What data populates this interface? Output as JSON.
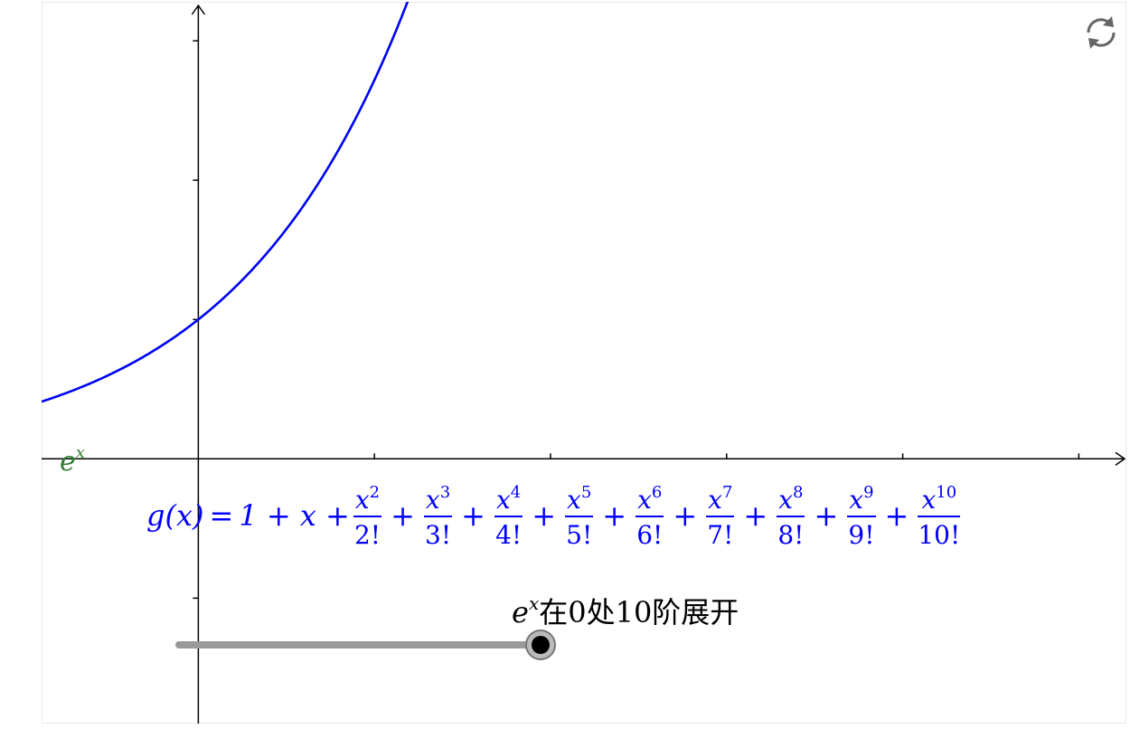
{
  "chart_data": {
    "type": "line",
    "title": "",
    "xlabel": "",
    "ylabel": "",
    "xlim": [
      -0.89,
      5.27
    ],
    "ylim": [
      -1.9,
      3.28
    ],
    "x_ticks": [
      1,
      2,
      3,
      4,
      5
    ],
    "y_ticks": [
      -1,
      1,
      2,
      3
    ],
    "grid": false,
    "series": [
      {
        "name": "e^x",
        "color": "#228b22",
        "function": "exp",
        "label_text": "e",
        "label_sup": "x"
      },
      {
        "name": "g(x)",
        "color": "#0000ff",
        "function": "taylor_exp_order_10",
        "order": 10
      }
    ]
  },
  "formula": {
    "lhs": "g(x)",
    "eq": "=",
    "lead": "1 + x +",
    "plus": "+",
    "terms": [
      {
        "num": "x",
        "pow": "2",
        "den": "2!"
      },
      {
        "num": "x",
        "pow": "3",
        "den": "3!"
      },
      {
        "num": "x",
        "pow": "4",
        "den": "4!"
      },
      {
        "num": "x",
        "pow": "5",
        "den": "5!"
      },
      {
        "num": "x",
        "pow": "6",
        "den": "6!"
      },
      {
        "num": "x",
        "pow": "7",
        "den": "7!"
      },
      {
        "num": "x",
        "pow": "8",
        "den": "8!"
      },
      {
        "num": "x",
        "pow": "9",
        "den": "9!"
      },
      {
        "num": "x",
        "pow": "10",
        "den": "10!"
      }
    ],
    "color": "#0000ff"
  },
  "slider": {
    "caption_base": "e",
    "caption_sup": "x",
    "caption_rest": "在0处10阶展开",
    "value": 10,
    "min": 0,
    "max": 10,
    "track_color": "#999999",
    "knob_color": "#000000"
  },
  "toolbar": {
    "refresh_icon": "refresh-icon"
  }
}
